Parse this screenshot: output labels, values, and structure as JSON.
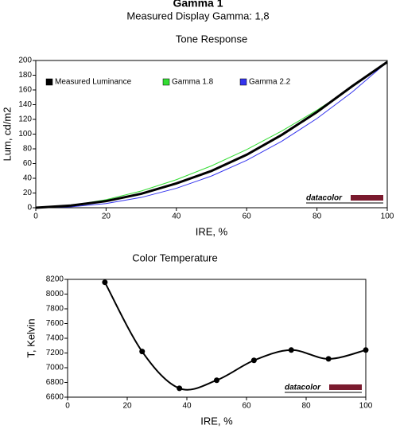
{
  "title": "Gamma 1",
  "subtitle": "Measured Display Gamma: 1,8",
  "chart_data": [
    {
      "type": "line",
      "title": "Tone Response",
      "xlabel": "IRE, %",
      "ylabel": "Lum, cd/m2",
      "logo": "datacolor",
      "x": [
        0,
        10,
        20,
        30,
        40,
        50,
        60,
        70,
        80,
        90,
        100
      ],
      "series": [
        {
          "name": "Measured Luminance",
          "color": "#000000",
          "values": [
            0,
            3,
            9,
            19,
            33,
            50,
            72,
            99,
            130,
            165,
            198
          ]
        },
        {
          "name": "Gamma 1.8",
          "color": "#33dd33",
          "values": [
            0,
            3.1,
            10.9,
            22.7,
            38.1,
            56.9,
            79.0,
            104.2,
            132.5,
            163.8,
            198
          ]
        },
        {
          "name": "Gamma 2.2",
          "color": "#3333ee",
          "values": [
            0,
            1.2,
            5.7,
            14.0,
            26.4,
            43.1,
            64.4,
            90.3,
            121.2,
            157.0,
            198
          ]
        }
      ],
      "xlim": [
        0,
        100
      ],
      "xticks": [
        0,
        20,
        40,
        60,
        80,
        100
      ],
      "ylim": [
        0,
        200
      ],
      "yticks": [
        0,
        20,
        40,
        60,
        80,
        100,
        120,
        140,
        160,
        180,
        200
      ],
      "legend": "top-left",
      "smooth": false,
      "markers": false
    },
    {
      "type": "line",
      "title": "Color Temperature",
      "xlabel": "IRE, %",
      "ylabel": "T, Kelvin",
      "logo": "datacolor",
      "x": [
        12.5,
        25,
        37.5,
        50,
        62.5,
        75,
        87.5,
        100
      ],
      "series": [
        {
          "color": "#000000",
          "values": [
            8160,
            7220,
            6720,
            6830,
            7100,
            7240,
            7120,
            7240
          ]
        }
      ],
      "xlim": [
        0,
        100
      ],
      "xticks": [
        0,
        20,
        40,
        60,
        80,
        100
      ],
      "ylim": [
        6600,
        8200
      ],
      "yticks": [
        6600,
        6800,
        7000,
        7200,
        7400,
        7600,
        7800,
        8000,
        8200
      ],
      "smooth": true,
      "markers": true
    }
  ]
}
